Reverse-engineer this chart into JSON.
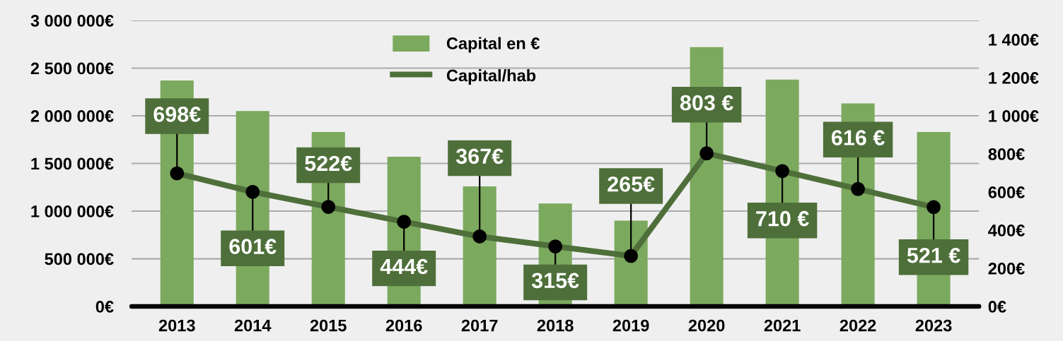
{
  "chart_data": {
    "type": "bar",
    "categories": [
      "2013",
      "2014",
      "2015",
      "2016",
      "2017",
      "2018",
      "2019",
      "2020",
      "2021",
      "2022",
      "2023"
    ],
    "series": [
      {
        "name": "Capital en €",
        "color": "#7ba95e",
        "values": [
          2370000,
          2050000,
          1830000,
          1570000,
          1260000,
          1080000,
          900000,
          2720000,
          2380000,
          2130000,
          1830000
        ]
      },
      {
        "name": "Capital/hab",
        "type": "line",
        "axis": "y2",
        "color": "#4e6f3a",
        "colors": [
          "#000000",
          "#000000",
          "#000000",
          "#000000",
          "#000000",
          "#000000",
          "#000000",
          "#000000",
          "#000000",
          "#000000",
          "#000000"
        ],
        "values": [
          698,
          601,
          522,
          444,
          367,
          315,
          265,
          803,
          710,
          616,
          521
        ],
        "value_labels": [
          "698€",
          "601€",
          "522€",
          "444€",
          "367€",
          "315€",
          "265€",
          "803 €",
          "710 €",
          "616 €",
          "521 €"
        ]
      }
    ],
    "ylim": [
      0,
      3000000
    ],
    "yticks": [
      {
        "value": 0,
        "label": "0€"
      },
      {
        "value": 500000,
        "label": "500 000€"
      },
      {
        "value": 1000000,
        "label": "1 000 000€"
      },
      {
        "value": 1500000,
        "label": "1 500 000€"
      },
      {
        "value": 2000000,
        "label": "2 000 000€"
      },
      {
        "value": 2500000,
        "label": "2 500 000€"
      },
      {
        "value": 3000000,
        "label": "3 000 000€"
      }
    ],
    "y2lim": [
      0,
      1500
    ],
    "y2ticks": [
      {
        "value": 0,
        "label": "0€"
      },
      {
        "value": 200,
        "label": "200€"
      },
      {
        "value": 400,
        "label": "400€"
      },
      {
        "value": 600,
        "label": "600€"
      },
      {
        "value": 800,
        "label": "800€"
      },
      {
        "value": 1000,
        "label": "1 000€"
      },
      {
        "value": 1200,
        "label": "1 200€"
      },
      {
        "value": 1400,
        "label": "1 400€"
      }
    ],
    "grid": "y",
    "legend": "top",
    "marker": "circle",
    "line_style": "solid"
  }
}
